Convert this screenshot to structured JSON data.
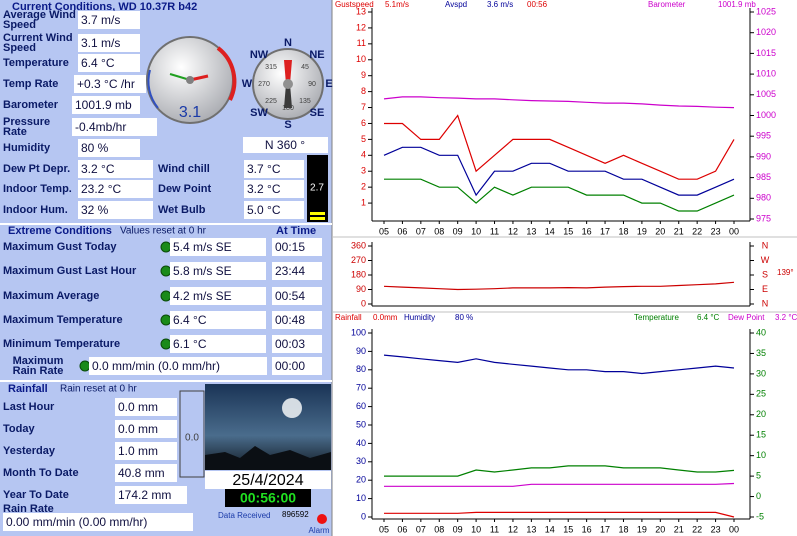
{
  "panel": {
    "title": "Current Conditions, WD 10.37R b42",
    "current": [
      {
        "label": "Average Wind Speed",
        "value": "3.7 m/s"
      },
      {
        "label": "Current Wind Speed",
        "value": "3.1 m/s"
      },
      {
        "label": "Temperature",
        "value": "6.4 °C",
        "color": "#cc0000"
      },
      {
        "label": "Temp Rate",
        "value": "+0.3 °C /hr"
      },
      {
        "label": "Barometer",
        "value": "1001.9 mb"
      },
      {
        "label": "Pressure Rate",
        "value": "-0.4mb/hr"
      },
      {
        "label": "Humidity",
        "value": "80 %"
      }
    ],
    "pairs": [
      {
        "label": "Dew Pt Depr.",
        "value": "3.2 °C",
        "label2": "Wind chill",
        "value2": "3.7 °C"
      },
      {
        "label": "Indoor Temp.",
        "value": "23.2 °C",
        "label2": "Dew Point",
        "value2": "3.2 °C"
      },
      {
        "label": "Indoor Hum.",
        "value": "32 %",
        "label2": "Wet Bulb",
        "value2": "5.0 °C"
      }
    ],
    "gauge_value": "3.1",
    "compass_points": [
      "N",
      "NE",
      "E",
      "SE",
      "S",
      "SW",
      "W",
      "NW"
    ],
    "compass_degrees": [
      "45",
      "90",
      "135",
      "180",
      "225",
      "270",
      "315"
    ],
    "direction": "N  360 °",
    "bar_value": "2.7",
    "extreme": {
      "title": "Extreme Conditions",
      "subtitle": "Values reset at 0 hr",
      "time_header": "At Time",
      "rows": [
        {
          "label": "Maximum Gust Today",
          "value": "5.4 m/s  SE",
          "time": "00:15",
          "color": "#cc0000"
        },
        {
          "label": "Maximum Gust Last Hour",
          "value": "5.8 m/s  SE",
          "time": "23:44"
        },
        {
          "label": "Maximum Average",
          "value": "4.2 m/s  SE",
          "time": "00:54"
        },
        {
          "label": "Maximum Temperature",
          "value": "6.4 °C",
          "time": "00:48",
          "color": "#cc0000"
        },
        {
          "label": "Minimum Temperature",
          "value": "6.1 °C",
          "time": "00:03"
        },
        {
          "label": "Maximum Rain Rate",
          "value": "0.0 mm/min (0.0 mm/hr)",
          "time": "00:00"
        }
      ]
    },
    "rainfall": {
      "title": "Rainfall",
      "subtitle": "Rain reset at 0 hr",
      "rows": [
        {
          "label": "Last Hour",
          "value": "0.0 mm"
        },
        {
          "label": "Today",
          "value": "0.0 mm"
        },
        {
          "label": "Yesterday",
          "value": "1.0 mm"
        },
        {
          "label": "Month To Date",
          "value": "40.8 mm"
        },
        {
          "label": "Year To Date",
          "value": "174.2 mm"
        }
      ],
      "rate_label": "Rain Rate",
      "rate_value": "0.00 mm/min (0.00 mm/hr)",
      "gauge": "0.0"
    },
    "date": "25/4/2024",
    "time": "00:56:00",
    "data_received_label": "Data Received",
    "data_received": "896592",
    "alarm": "Alarm"
  },
  "chart_data": [
    {
      "type": "line",
      "time": "00:56",
      "categories": [
        "05",
        "06",
        "07",
        "08",
        "09",
        "10",
        "11",
        "12",
        "13",
        "14",
        "15",
        "16",
        "17",
        "18",
        "19",
        "20",
        "21",
        "22",
        "23",
        "00"
      ],
      "series": [
        {
          "name": "Gustspeed",
          "label": "5.1m/s",
          "color": "#dd0000",
          "values": [
            6,
            6,
            5,
            5,
            6.5,
            3,
            4,
            5,
            5,
            5,
            4.5,
            4,
            3.5,
            4,
            3.5,
            3,
            2.5,
            2.5,
            3,
            5
          ]
        },
        {
          "name": "Avspd",
          "label": "3.6 m/s",
          "color": "#000099",
          "values": [
            4,
            4.5,
            4.5,
            4,
            4,
            1.5,
            3,
            3,
            3.5,
            3.5,
            3,
            3,
            3,
            2.5,
            2.5,
            2,
            1.5,
            1.5,
            2,
            2.5
          ]
        },
        {
          "color": "#008000",
          "values": [
            2.5,
            2.5,
            2.5,
            2,
            2,
            1,
            2,
            1.5,
            2,
            2,
            2,
            1.5,
            1.5,
            1.5,
            1,
            1,
            0.5,
            0.5,
            1,
            1.5
          ]
        },
        {
          "name": "Barometer",
          "label": "1001.9 mb",
          "color": "#cc00cc",
          "axis": "y2",
          "values": [
            1004,
            1004.5,
            1004.5,
            1004.3,
            1004.2,
            1004,
            1004,
            1003.8,
            1003.6,
            1003.5,
            1003.4,
            1003.2,
            1003,
            1003,
            1002.8,
            1002.5,
            1002.3,
            1002.2,
            1002,
            1001.9
          ]
        }
      ],
      "ylim": [
        0,
        13
      ],
      "yticks": [
        1,
        2,
        3,
        4,
        5,
        6,
        7,
        8,
        9,
        10,
        11,
        12,
        13
      ],
      "y2lim": [
        975,
        1025
      ],
      "y2ticks": [
        975,
        980,
        985,
        990,
        995,
        1000,
        1005,
        1010,
        1015,
        1020,
        1025
      ]
    },
    {
      "type": "line",
      "categories": [
        "05",
        "06",
        "07",
        "08",
        "09",
        "10",
        "11",
        "12",
        "13",
        "14",
        "15",
        "16",
        "17",
        "18",
        "19",
        "20",
        "21",
        "22",
        "23",
        "00"
      ],
      "series": [
        {
          "color": "#cc0000",
          "values": [
            110,
            105,
            100,
            95,
            90,
            92,
            95,
            100,
            100,
            100,
            102,
            100,
            105,
            108,
            110,
            110,
            115,
            120,
            125,
            135
          ]
        }
      ],
      "ylim": [
        0,
        360
      ],
      "yticks": [
        0,
        90,
        180,
        270,
        360
      ],
      "y2lim": [
        0,
        360
      ],
      "y2ticks": [
        {
          "value": 0,
          "label": "N"
        },
        {
          "value": 90,
          "label": "E"
        },
        {
          "value": 180,
          "label": "S"
        },
        {
          "value": 270,
          "label": "W"
        },
        {
          "value": 360,
          "label": "N"
        }
      ],
      "direction_label": "139°"
    },
    {
      "type": "line",
      "categories": [
        "05",
        "06",
        "07",
        "08",
        "09",
        "10",
        "11",
        "12",
        "13",
        "14",
        "15",
        "16",
        "17",
        "18",
        "19",
        "20",
        "21",
        "22",
        "23",
        "00"
      ],
      "series": [
        {
          "name": "Humidity",
          "label": "80 %",
          "color": "#000099",
          "values": [
            88,
            87,
            86,
            85,
            84,
            86,
            84,
            83,
            82,
            81,
            80,
            80,
            79,
            79,
            78,
            79,
            80,
            81,
            82,
            81
          ]
        },
        {
          "name": "Rainfall",
          "label": "0.0mm",
          "color": "#dd0000",
          "values": [
            2,
            2,
            2,
            2,
            2,
            2.5,
            2.5,
            2.5,
            2.5,
            2.5,
            2.5,
            2.5,
            2.5,
            2.5,
            2.5,
            2.5,
            2.5,
            2.5,
            2.5,
            0
          ]
        },
        {
          "name": "Temperature",
          "label": "6.4 °C",
          "color": "#008000",
          "axis": "y2",
          "values": [
            5,
            5,
            5,
            5,
            5,
            6.5,
            6,
            6.5,
            7,
            7,
            7.5,
            7.5,
            7.5,
            7,
            7,
            7,
            6.5,
            6,
            6,
            6.4
          ]
        },
        {
          "name": "Dew Point",
          "label": "3.2 °C",
          "color": "#cc00cc",
          "axis": "y2",
          "values": [
            2.5,
            2.5,
            2.5,
            2.5,
            2.5,
            2.5,
            2.5,
            2.5,
            3,
            3,
            3,
            3,
            3,
            3,
            3,
            3,
            3,
            3,
            3,
            3.2
          ]
        }
      ],
      "ylim": [
        0,
        100
      ],
      "yticks": [
        0,
        10,
        20,
        30,
        40,
        50,
        60,
        70,
        80,
        90,
        100
      ],
      "y2lim": [
        -5,
        40
      ],
      "y2ticks": [
        -5,
        0,
        5,
        10,
        15,
        20,
        25,
        30,
        35,
        40
      ]
    }
  ]
}
